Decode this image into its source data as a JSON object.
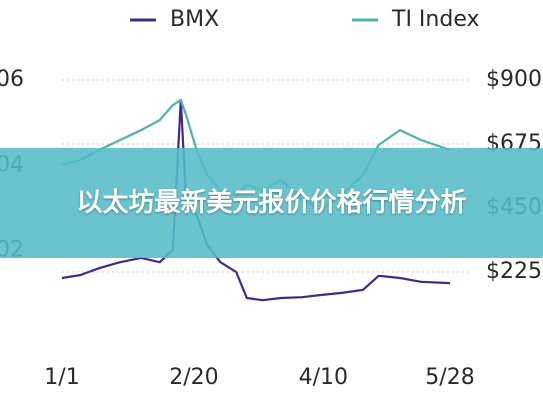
{
  "chart_data": {
    "type": "line",
    "x": [
      1,
      8,
      15,
      23,
      31,
      38,
      43,
      46,
      48,
      52,
      56,
      61,
      67,
      71,
      77,
      84,
      92,
      99,
      107,
      115,
      121,
      129,
      137,
      148
    ],
    "xlim": [
      1,
      148
    ],
    "xticks": [
      {
        "value": 1,
        "label": "1/1"
      },
      {
        "value": 51,
        "label": "2/20"
      },
      {
        "value": 100,
        "label": "4/10"
      },
      {
        "value": 148,
        "label": "5/28"
      }
    ],
    "ylim": [
      0,
      0.06
    ],
    "yticks": [
      {
        "value": 0.02,
        "label": "02"
      },
      {
        "value": 0.04,
        "label": "04"
      },
      {
        "value": 0.06,
        "label": "06"
      }
    ],
    "y2lim": [
      0,
      900
    ],
    "y2ticks": [
      {
        "value": 225,
        "label": "$225"
      },
      {
        "value": 450,
        "label": "$450"
      },
      {
        "value": 675,
        "label": "$675"
      },
      {
        "value": 900,
        "label": "$900"
      }
    ],
    "grid": true,
    "legend": "top",
    "series": [
      {
        "name": "BMX",
        "color": "#3b2d8c",
        "axis": "y",
        "values": [
          0.0136,
          0.0143,
          0.0159,
          0.0173,
          0.0183,
          0.0173,
          0.0202,
          0.0553,
          0.0319,
          0.0284,
          0.0213,
          0.0173,
          0.015,
          0.0089,
          0.0084,
          0.0089,
          0.0091,
          0.0096,
          0.0101,
          0.0108,
          0.0141,
          0.0136,
          0.0127,
          0.0124
        ]
      },
      {
        "name": "TI Index",
        "color": "#4fb3ad",
        "axis": "y2",
        "values": [
          601,
          619,
          654,
          689,
          724,
          759,
          812,
          830,
          777,
          654,
          566,
          513,
          496,
          531,
          513,
          548,
          478,
          443,
          496,
          566,
          672,
          724,
          689,
          654
        ]
      }
    ]
  },
  "banner": {
    "text": "以太坊最新美元报价价格行情分析"
  }
}
